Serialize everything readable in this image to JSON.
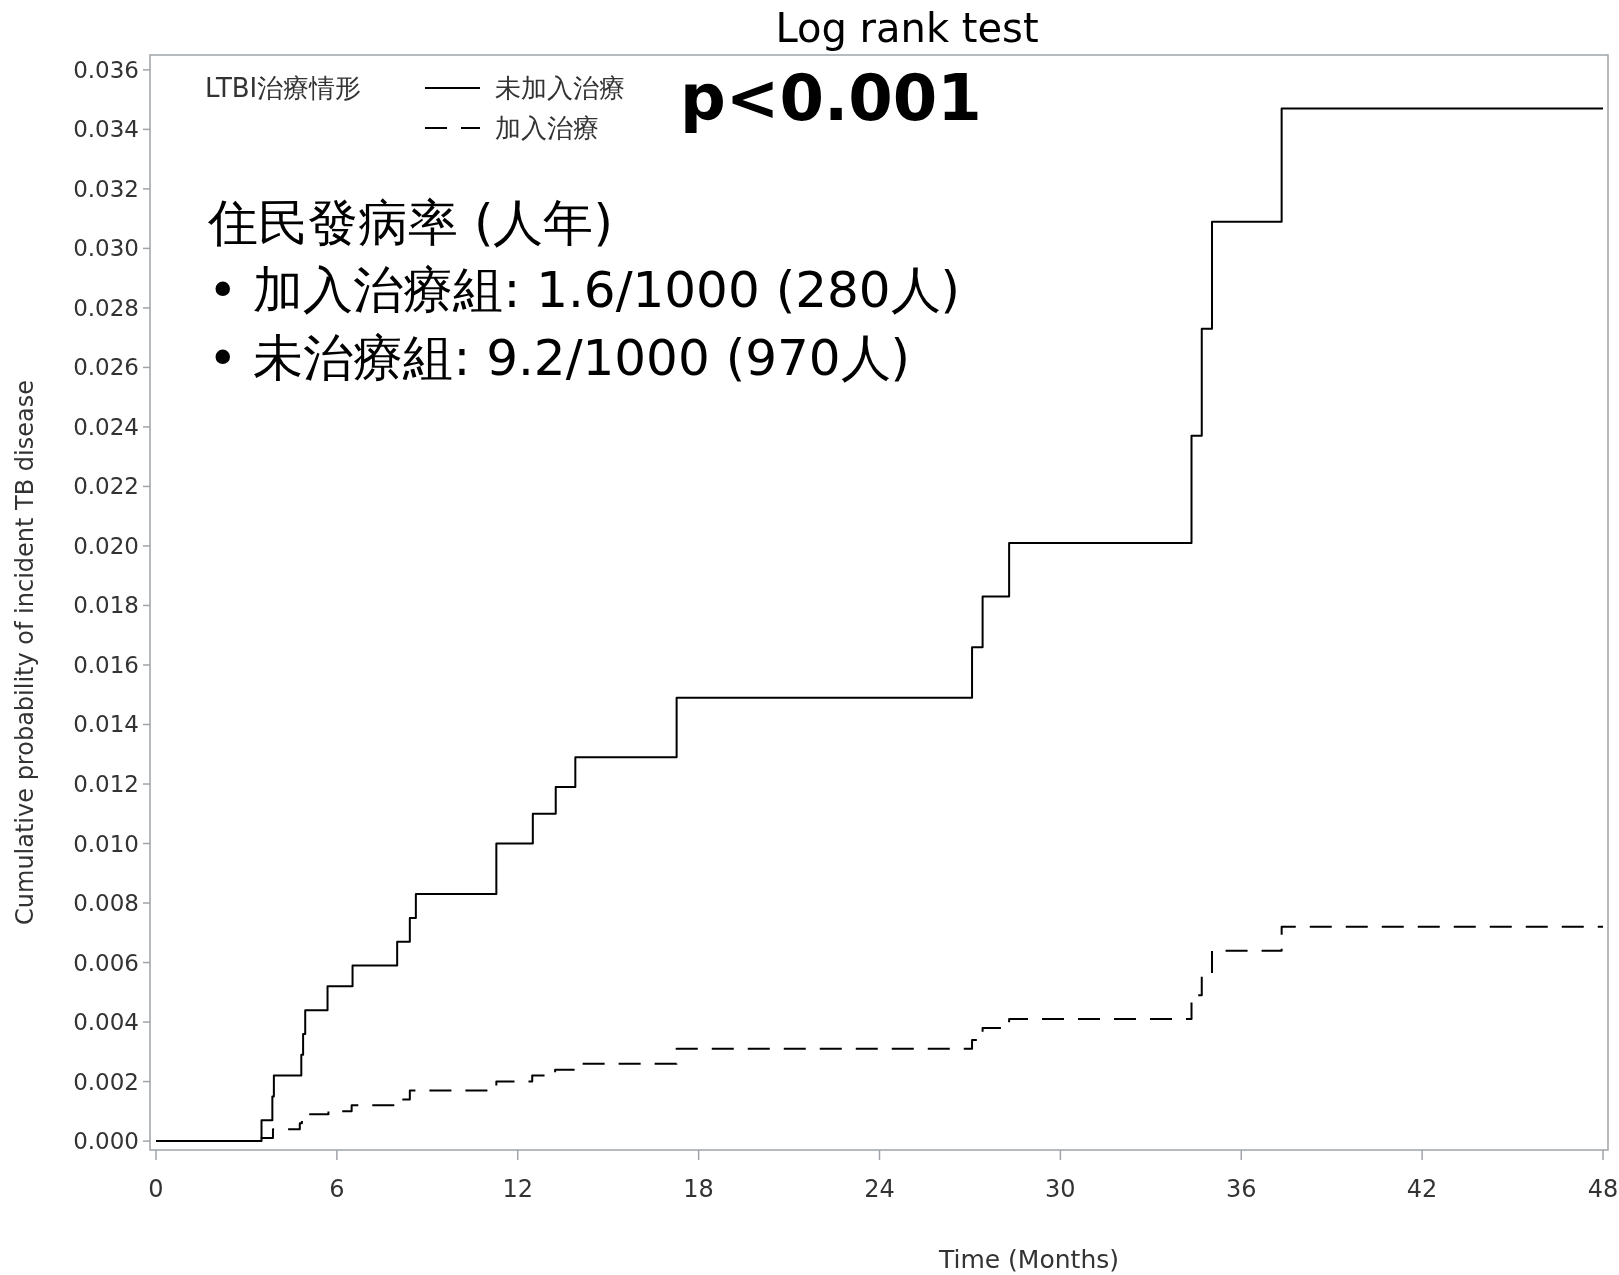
{
  "chart_data": {
    "type": "step",
    "title": "Log rank test",
    "xlabel": "Time (Months)",
    "ylabel": "Cumulative probability of incident TB disease",
    "legend_title": "LTBI治療情形",
    "legend": "top left",
    "annotations": [
      "p<0.001",
      "住民發病率 (人年)",
      "•    加入治療組: 1.6/1000 (280人)",
      "•    未治療組: 9.2/1000 (970人)"
    ],
    "xlim": [
      0,
      48
    ],
    "ylim": [
      -0.0003,
      0.0365
    ],
    "xticks": [
      0,
      6,
      12,
      18,
      24,
      30,
      36,
      42,
      48
    ],
    "yticks": [
      {
        "value": 0,
        "label": "0.000"
      },
      {
        "value": 0.002,
        "label": "0.002"
      },
      {
        "value": 0.004,
        "label": "0.004"
      },
      {
        "value": 0.006,
        "label": "0.006"
      },
      {
        "value": 0.008,
        "label": "0.008"
      },
      {
        "value": 0.01,
        "label": "0.010"
      },
      {
        "value": 0.012,
        "label": "0.012"
      },
      {
        "value": 0.014,
        "label": "0.014"
      },
      {
        "value": 0.016,
        "label": "0.016"
      },
      {
        "value": 0.018,
        "label": "0.018"
      },
      {
        "value": 0.02,
        "label": "0.020"
      },
      {
        "value": 0.022,
        "label": "0.022"
      },
      {
        "value": 0.024,
        "label": "0.024"
      },
      {
        "value": 0.026,
        "label": "0.026"
      },
      {
        "value": 0.028,
        "label": "0.028"
      },
      {
        "value": 0.03,
        "label": "0.030"
      },
      {
        "value": 0.032,
        "label": "0.032"
      },
      {
        "value": 0.034,
        "label": "0.034"
      },
      {
        "value": 0.036,
        "label": "0.036"
      }
    ],
    "series": [
      {
        "name": "未加入治療",
        "color": "#000000",
        "line_style": "solid",
        "x": [
          0,
          3.5,
          3.86,
          3.91,
          4.82,
          4.88,
          4.95,
          5.69,
          6.52,
          8.0,
          8.42,
          8.62,
          11.29,
          12.5,
          13.26,
          13.91,
          17.27,
          27.07,
          27.42,
          28.3,
          34.35,
          34.69,
          35.03,
          37.34,
          48
        ],
        "values": [
          0,
          0.0007,
          0.0015,
          0.0022,
          0.0029,
          0.0036,
          0.0044,
          0.0052,
          0.0059,
          0.0067,
          0.0075,
          0.0083,
          0.01,
          0.011,
          0.0119,
          0.0129,
          0.0149,
          0.0166,
          0.0183,
          0.0201,
          0.0237,
          0.0273,
          0.0309,
          0.0347,
          0.0347
        ]
      },
      {
        "name": "加入治療",
        "color": "#000000",
        "line_style": "dashed",
        "x": [
          0,
          3.5,
          3.88,
          4.77,
          4.84,
          4.92,
          5.72,
          6.49,
          7.98,
          8.42,
          11.29,
          12.48,
          13.24,
          13.95,
          17.27,
          27.07,
          27.42,
          28.3,
          34.35,
          34.69,
          35.03,
          37.34,
          48
        ],
        "values": [
          0,
          0.0001,
          0.0004,
          0.0006,
          0.0008,
          0.0009,
          0.001,
          0.0012,
          0.0014,
          0.0017,
          0.002,
          0.0022,
          0.0024,
          0.0026,
          0.0031,
          0.0034,
          0.0038,
          0.0041,
          0.0049,
          0.0056,
          0.0064,
          0.0072,
          0.0072
        ]
      }
    ]
  }
}
